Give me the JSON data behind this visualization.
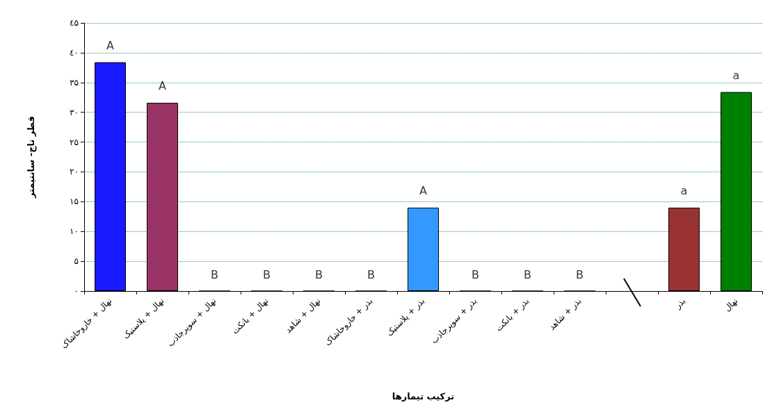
{
  "chart_data": {
    "type": "bar",
    "xlabel": "ترکیب تیمارها",
    "ylabel": "قطر تاج- سانتیمتر",
    "categories": [
      "نهال + خاروخاشاک",
      "نهال + پلاستیک",
      "نهال + سوپرجاذب",
      "نهال + بانکت",
      "نهال + شاهد",
      "بذر + خاروخاشاک",
      "بذر + پلاستیک",
      "بذر + سوپرجاذب",
      "بذر + بانکت",
      "بذر + شاهد",
      null,
      "بذر",
      "نهال"
    ],
    "values": [
      38.4,
      31.6,
      0,
      0,
      0,
      0,
      14.0,
      0,
      0,
      0,
      null,
      14.0,
      33.4
    ],
    "colors": [
      "#1a1aff",
      "#993366",
      null,
      null,
      null,
      null,
      "#3399ff",
      null,
      null,
      null,
      null,
      "#993333",
      "#008000"
    ],
    "ylim": [
      0,
      45
    ],
    "yticks": [
      {
        "value": 0,
        "label": "۰"
      },
      {
        "value": 5,
        "label": "۵"
      },
      {
        "value": 10,
        "label": "۱۰"
      },
      {
        "value": 15,
        "label": "۱۵"
      },
      {
        "value": 20,
        "label": "۲۰"
      },
      {
        "value": 25,
        "label": "۲۵"
      },
      {
        "value": 30,
        "label": "۳۰"
      },
      {
        "value": 35,
        "label": "۳۵"
      },
      {
        "value": 40,
        "label": "٤۰"
      },
      {
        "value": 45,
        "label": "٤۵"
      }
    ],
    "grid": "y",
    "annotations": [
      {
        "text": "A",
        "x": "نهال + خاروخاشاک",
        "y": 38.4
      },
      {
        "text": "A",
        "x": "نهال + پلاستیک",
        "y": 31.6
      },
      {
        "text": "B",
        "x": "نهال + سوپرجاذب",
        "y": 0
      },
      {
        "text": "B",
        "x": "نهال + بانکت",
        "y": 0
      },
      {
        "text": "B",
        "x": "نهال + شاهد",
        "y": 0
      },
      {
        "text": "B",
        "x": "بذر + خاروخاشاک",
        "y": 0
      },
      {
        "text": "A",
        "x": "بذر + پلاستیک",
        "y": 14.0
      },
      {
        "text": "B",
        "x": "بذر + سوپرجاذب",
        "y": 0
      },
      {
        "text": "B",
        "x": "بذر + بانکت",
        "y": 0
      },
      {
        "text": "B",
        "x": "بذر + شاهد",
        "y": 0
      },
      {
        "text": "a",
        "x": "بذر",
        "y": 14.0
      },
      {
        "text": "a",
        "x": "نهال",
        "y": 33.4
      }
    ]
  }
}
